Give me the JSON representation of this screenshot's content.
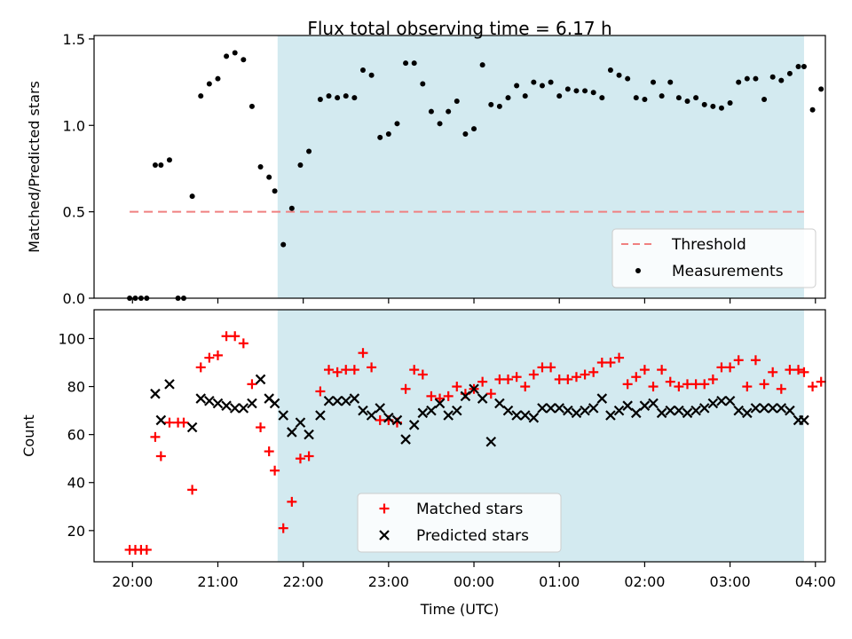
{
  "chart_data": [
    {
      "type": "scatter",
      "title": "Flux total observing time = 6.17 h",
      "ylabel": "Matched/Predicted stars",
      "xlabel": "",
      "ylim": [
        0,
        1.52
      ],
      "xlim": [
        "19:33",
        "04:07"
      ],
      "yticks": [
        0.0,
        0.5,
        1.0,
        1.5
      ],
      "ytick_labels": [
        "0.0",
        "0.5",
        "1.0",
        "1.5"
      ],
      "shaded_region": {
        "start": "21:42",
        "end": "03:52",
        "color": "#d3eaf0"
      },
      "legend": {
        "position": "bottom-right",
        "entries": [
          "Threshold",
          "Measurements"
        ]
      },
      "threshold": {
        "name": "Threshold",
        "y": 0.5,
        "x_start": "19:58",
        "x_end": "03:52",
        "color": "#f08080"
      },
      "series": [
        {
          "name": "Measurements",
          "color": "#000000",
          "points": [
            [
              "19:58",
              0.0
            ],
            [
              "20:02",
              0.0
            ],
            [
              "20:06",
              0.0
            ],
            [
              "20:10",
              0.0
            ],
            [
              "20:16",
              0.77
            ],
            [
              "20:20",
              0.77
            ],
            [
              "20:26",
              0.8
            ],
            [
              "20:32",
              0.0
            ],
            [
              "20:36",
              0.0
            ],
            [
              "20:42",
              0.59
            ],
            [
              "20:48",
              1.17
            ],
            [
              "20:54",
              1.24
            ],
            [
              "21:00",
              1.27
            ],
            [
              "21:06",
              1.4
            ],
            [
              "21:12",
              1.42
            ],
            [
              "21:18",
              1.38
            ],
            [
              "21:24",
              1.11
            ],
            [
              "21:30",
              0.76
            ],
            [
              "21:36",
              0.7
            ],
            [
              "21:40",
              0.62
            ],
            [
              "21:46",
              0.31
            ],
            [
              "21:52",
              0.52
            ],
            [
              "21:58",
              0.77
            ],
            [
              "22:04",
              0.85
            ],
            [
              "22:12",
              1.15
            ],
            [
              "22:18",
              1.17
            ],
            [
              "22:24",
              1.16
            ],
            [
              "22:30",
              1.17
            ],
            [
              "22:36",
              1.16
            ],
            [
              "22:42",
              1.32
            ],
            [
              "22:48",
              1.29
            ],
            [
              "22:54",
              0.93
            ],
            [
              "23:00",
              0.95
            ],
            [
              "23:06",
              1.01
            ],
            [
              "23:12",
              1.36
            ],
            [
              "23:18",
              1.36
            ],
            [
              "23:24",
              1.24
            ],
            [
              "23:30",
              1.08
            ],
            [
              "23:36",
              1.01
            ],
            [
              "23:42",
              1.08
            ],
            [
              "23:48",
              1.14
            ],
            [
              "23:54",
              0.95
            ],
            [
              "00:00",
              0.98
            ],
            [
              "00:06",
              1.35
            ],
            [
              "00:12",
              1.12
            ],
            [
              "00:18",
              1.11
            ],
            [
              "00:24",
              1.16
            ],
            [
              "00:30",
              1.23
            ],
            [
              "00:36",
              1.17
            ],
            [
              "00:42",
              1.25
            ],
            [
              "00:48",
              1.23
            ],
            [
              "00:54",
              1.25
            ],
            [
              "01:00",
              1.17
            ],
            [
              "01:06",
              1.21
            ],
            [
              "01:12",
              1.2
            ],
            [
              "01:18",
              1.2
            ],
            [
              "01:24",
              1.19
            ],
            [
              "01:30",
              1.16
            ],
            [
              "01:36",
              1.32
            ],
            [
              "01:42",
              1.29
            ],
            [
              "01:48",
              1.27
            ],
            [
              "01:54",
              1.16
            ],
            [
              "02:00",
              1.15
            ],
            [
              "02:06",
              1.25
            ],
            [
              "02:12",
              1.17
            ],
            [
              "02:18",
              1.25
            ],
            [
              "02:24",
              1.16
            ],
            [
              "02:30",
              1.14
            ],
            [
              "02:36",
              1.16
            ],
            [
              "02:42",
              1.12
            ],
            [
              "02:48",
              1.11
            ],
            [
              "02:54",
              1.1
            ],
            [
              "03:00",
              1.13
            ],
            [
              "03:06",
              1.25
            ],
            [
              "03:12",
              1.27
            ],
            [
              "03:18",
              1.27
            ],
            [
              "03:24",
              1.15
            ],
            [
              "03:30",
              1.28
            ],
            [
              "03:36",
              1.26
            ],
            [
              "03:42",
              1.3
            ],
            [
              "03:48",
              1.34
            ],
            [
              "03:52",
              1.34
            ],
            [
              "03:58",
              1.09
            ],
            [
              "04:04",
              1.21
            ]
          ]
        }
      ]
    },
    {
      "type": "scatter",
      "title": "",
      "ylabel": "Count",
      "xlabel": "Time (UTC)",
      "ylim": [
        7,
        112
      ],
      "xlim": [
        "19:33",
        "04:07"
      ],
      "yticks": [
        20,
        40,
        60,
        80,
        100
      ],
      "ytick_labels": [
        "20",
        "40",
        "60",
        "80",
        "100"
      ],
      "xticks": [
        "20:00",
        "21:00",
        "22:00",
        "23:00",
        "00:00",
        "01:00",
        "02:00",
        "03:00",
        "04:00"
      ],
      "xtick_labels": [
        "20:00",
        "21:00",
        "22:00",
        "23:00",
        "00:00",
        "01:00",
        "02:00",
        "03:00",
        "04:00"
      ],
      "shaded_region": {
        "start": "21:42",
        "end": "03:52",
        "color": "#d3eaf0"
      },
      "legend": {
        "position": "lower-center",
        "entries": [
          "Matched stars",
          "Predicted stars"
        ]
      },
      "series": [
        {
          "name": "Matched stars",
          "marker": "plus",
          "color": "#ff0000",
          "points": [
            [
              "19:58",
              12
            ],
            [
              "20:02",
              12
            ],
            [
              "20:06",
              12
            ],
            [
              "20:10",
              12
            ],
            [
              "20:16",
              59
            ],
            [
              "20:20",
              51
            ],
            [
              "20:26",
              65
            ],
            [
              "20:32",
              65
            ],
            [
              "20:36",
              65
            ],
            [
              "20:42",
              37
            ],
            [
              "20:48",
              88
            ],
            [
              "20:54",
              92
            ],
            [
              "21:00",
              93
            ],
            [
              "21:06",
              101
            ],
            [
              "21:12",
              101
            ],
            [
              "21:18",
              98
            ],
            [
              "21:24",
              81
            ],
            [
              "21:30",
              63
            ],
            [
              "21:36",
              53
            ],
            [
              "21:40",
              45
            ],
            [
              "21:46",
              21
            ],
            [
              "21:52",
              32
            ],
            [
              "21:58",
              50
            ],
            [
              "22:04",
              51
            ],
            [
              "22:12",
              78
            ],
            [
              "22:18",
              87
            ],
            [
              "22:24",
              86
            ],
            [
              "22:30",
              87
            ],
            [
              "22:36",
              87
            ],
            [
              "22:42",
              94
            ],
            [
              "22:48",
              88
            ],
            [
              "22:54",
              66
            ],
            [
              "23:00",
              66
            ],
            [
              "23:06",
              65
            ],
            [
              "23:12",
              79
            ],
            [
              "23:18",
              87
            ],
            [
              "23:24",
              85
            ],
            [
              "23:30",
              76
            ],
            [
              "23:36",
              75
            ],
            [
              "23:42",
              76
            ],
            [
              "23:48",
              80
            ],
            [
              "23:54",
              77
            ],
            [
              "00:00",
              79
            ],
            [
              "00:06",
              82
            ],
            [
              "00:12",
              77
            ],
            [
              "00:18",
              83
            ],
            [
              "00:24",
              83
            ],
            [
              "00:30",
              84
            ],
            [
              "00:36",
              80
            ],
            [
              "00:42",
              85
            ],
            [
              "00:48",
              88
            ],
            [
              "00:54",
              88
            ],
            [
              "01:00",
              83
            ],
            [
              "01:06",
              83
            ],
            [
              "01:12",
              84
            ],
            [
              "01:18",
              85
            ],
            [
              "01:24",
              86
            ],
            [
              "01:30",
              90
            ],
            [
              "01:36",
              90
            ],
            [
              "01:42",
              92
            ],
            [
              "01:48",
              81
            ],
            [
              "01:54",
              84
            ],
            [
              "02:00",
              87
            ],
            [
              "02:06",
              80
            ],
            [
              "02:12",
              87
            ],
            [
              "02:18",
              82
            ],
            [
              "02:24",
              80
            ],
            [
              "02:30",
              81
            ],
            [
              "02:36",
              81
            ],
            [
              "02:42",
              81
            ],
            [
              "02:48",
              83
            ],
            [
              "02:54",
              88
            ],
            [
              "03:00",
              88
            ],
            [
              "03:06",
              91
            ],
            [
              "03:12",
              80
            ],
            [
              "03:18",
              91
            ],
            [
              "03:24",
              81
            ],
            [
              "03:30",
              86
            ],
            [
              "03:36",
              79
            ],
            [
              "03:42",
              87
            ],
            [
              "03:48",
              87
            ],
            [
              "03:52",
              86
            ],
            [
              "03:58",
              80
            ],
            [
              "04:04",
              82
            ]
          ]
        },
        {
          "name": "Predicted stars",
          "marker": "x",
          "color": "#000000",
          "points": [
            [
              "20:16",
              77
            ],
            [
              "20:20",
              66
            ],
            [
              "20:26",
              81
            ],
            [
              "20:42",
              63
            ],
            [
              "20:48",
              75
            ],
            [
              "20:54",
              74
            ],
            [
              "21:00",
              73
            ],
            [
              "21:06",
              72
            ],
            [
              "21:12",
              71
            ],
            [
              "21:18",
              71
            ],
            [
              "21:24",
              73
            ],
            [
              "21:30",
              83
            ],
            [
              "21:36",
              75
            ],
            [
              "21:40",
              73
            ],
            [
              "21:46",
              68
            ],
            [
              "21:52",
              61
            ],
            [
              "21:58",
              65
            ],
            [
              "22:04",
              60
            ],
            [
              "22:12",
              68
            ],
            [
              "22:18",
              74
            ],
            [
              "22:24",
              74
            ],
            [
              "22:30",
              74
            ],
            [
              "22:36",
              75
            ],
            [
              "22:42",
              70
            ],
            [
              "22:48",
              68
            ],
            [
              "22:54",
              71
            ],
            [
              "23:00",
              67
            ],
            [
              "23:06",
              66
            ],
            [
              "23:12",
              58
            ],
            [
              "23:18",
              64
            ],
            [
              "23:24",
              69
            ],
            [
              "23:30",
              70
            ],
            [
              "23:36",
              73
            ],
            [
              "23:42",
              68
            ],
            [
              "23:48",
              70
            ],
            [
              "23:54",
              76
            ],
            [
              "00:00",
              79
            ],
            [
              "00:06",
              75
            ],
            [
              "00:12",
              57
            ],
            [
              "00:18",
              73
            ],
            [
              "00:24",
              70
            ],
            [
              "00:30",
              68
            ],
            [
              "00:36",
              68
            ],
            [
              "00:42",
              67
            ],
            [
              "00:48",
              71
            ],
            [
              "00:54",
              71
            ],
            [
              "01:00",
              71
            ],
            [
              "01:06",
              70
            ],
            [
              "01:12",
              69
            ],
            [
              "01:18",
              70
            ],
            [
              "01:24",
              71
            ],
            [
              "01:30",
              75
            ],
            [
              "01:36",
              68
            ],
            [
              "01:42",
              70
            ],
            [
              "01:48",
              72
            ],
            [
              "01:54",
              69
            ],
            [
              "02:00",
              72
            ],
            [
              "02:06",
              73
            ],
            [
              "02:12",
              69
            ],
            [
              "02:18",
              70
            ],
            [
              "02:24",
              70
            ],
            [
              "02:30",
              69
            ],
            [
              "02:36",
              70
            ],
            [
              "02:42",
              71
            ],
            [
              "02:48",
              73
            ],
            [
              "02:54",
              74
            ],
            [
              "03:00",
              74
            ],
            [
              "03:06",
              70
            ],
            [
              "03:12",
              69
            ],
            [
              "03:18",
              71
            ],
            [
              "03:24",
              71
            ],
            [
              "03:30",
              71
            ],
            [
              "03:36",
              71
            ],
            [
              "03:42",
              70
            ],
            [
              "03:48",
              66
            ],
            [
              "03:52",
              66
            ]
          ]
        }
      ]
    }
  ]
}
